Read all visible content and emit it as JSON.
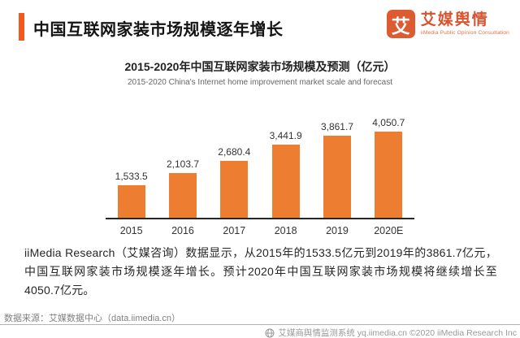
{
  "header": {
    "title": "中国互联网家装市场规模逐年增长",
    "logo": {
      "icon_text": "艾",
      "name": "艾媒舆情",
      "subtitle": "iiMedia Public Opinion Consultation"
    }
  },
  "chart_data": {
    "type": "bar",
    "title": "2015-2020年中国互联网家装市场规模及预测（亿元）",
    "subtitle": "2015-2020 China's Internet home improvement market scale and forecast",
    "categories": [
      "2015",
      "2016",
      "2017",
      "2018",
      "2019",
      "2020E"
    ],
    "values": [
      1533.5,
      2103.7,
      2680.4,
      3441.9,
      3861.7,
      4050.7
    ],
    "value_labels": [
      "1,533.5",
      "2,103.7",
      "2,680.4",
      "3,441.9",
      "3,861.7",
      "4,050.7"
    ],
    "unit": "亿元",
    "ylim": [
      0,
      4300
    ],
    "grid": false,
    "legend": false,
    "bar_color": "#ED7D31"
  },
  "analysis": {
    "text": "iiMedia Research（艾媒咨询）数据显示，从2015年的1533.5亿元到2019年的3861.7亿元，中国互联网家装市场规模逐年增长。预计2020年中国互联网家装市场规模将继续增长至4050.7亿元。"
  },
  "footer": {
    "source": "数据来源：艾媒数据中心（data.iimedia.cn）",
    "system": "艾媒商舆情监测系统 yq.iimedia.cn ©2020  iiMedia Research Inc"
  },
  "colors": {
    "accent": "#F4581E",
    "bar": "#ED7D31",
    "logo": "#DC5B31"
  }
}
